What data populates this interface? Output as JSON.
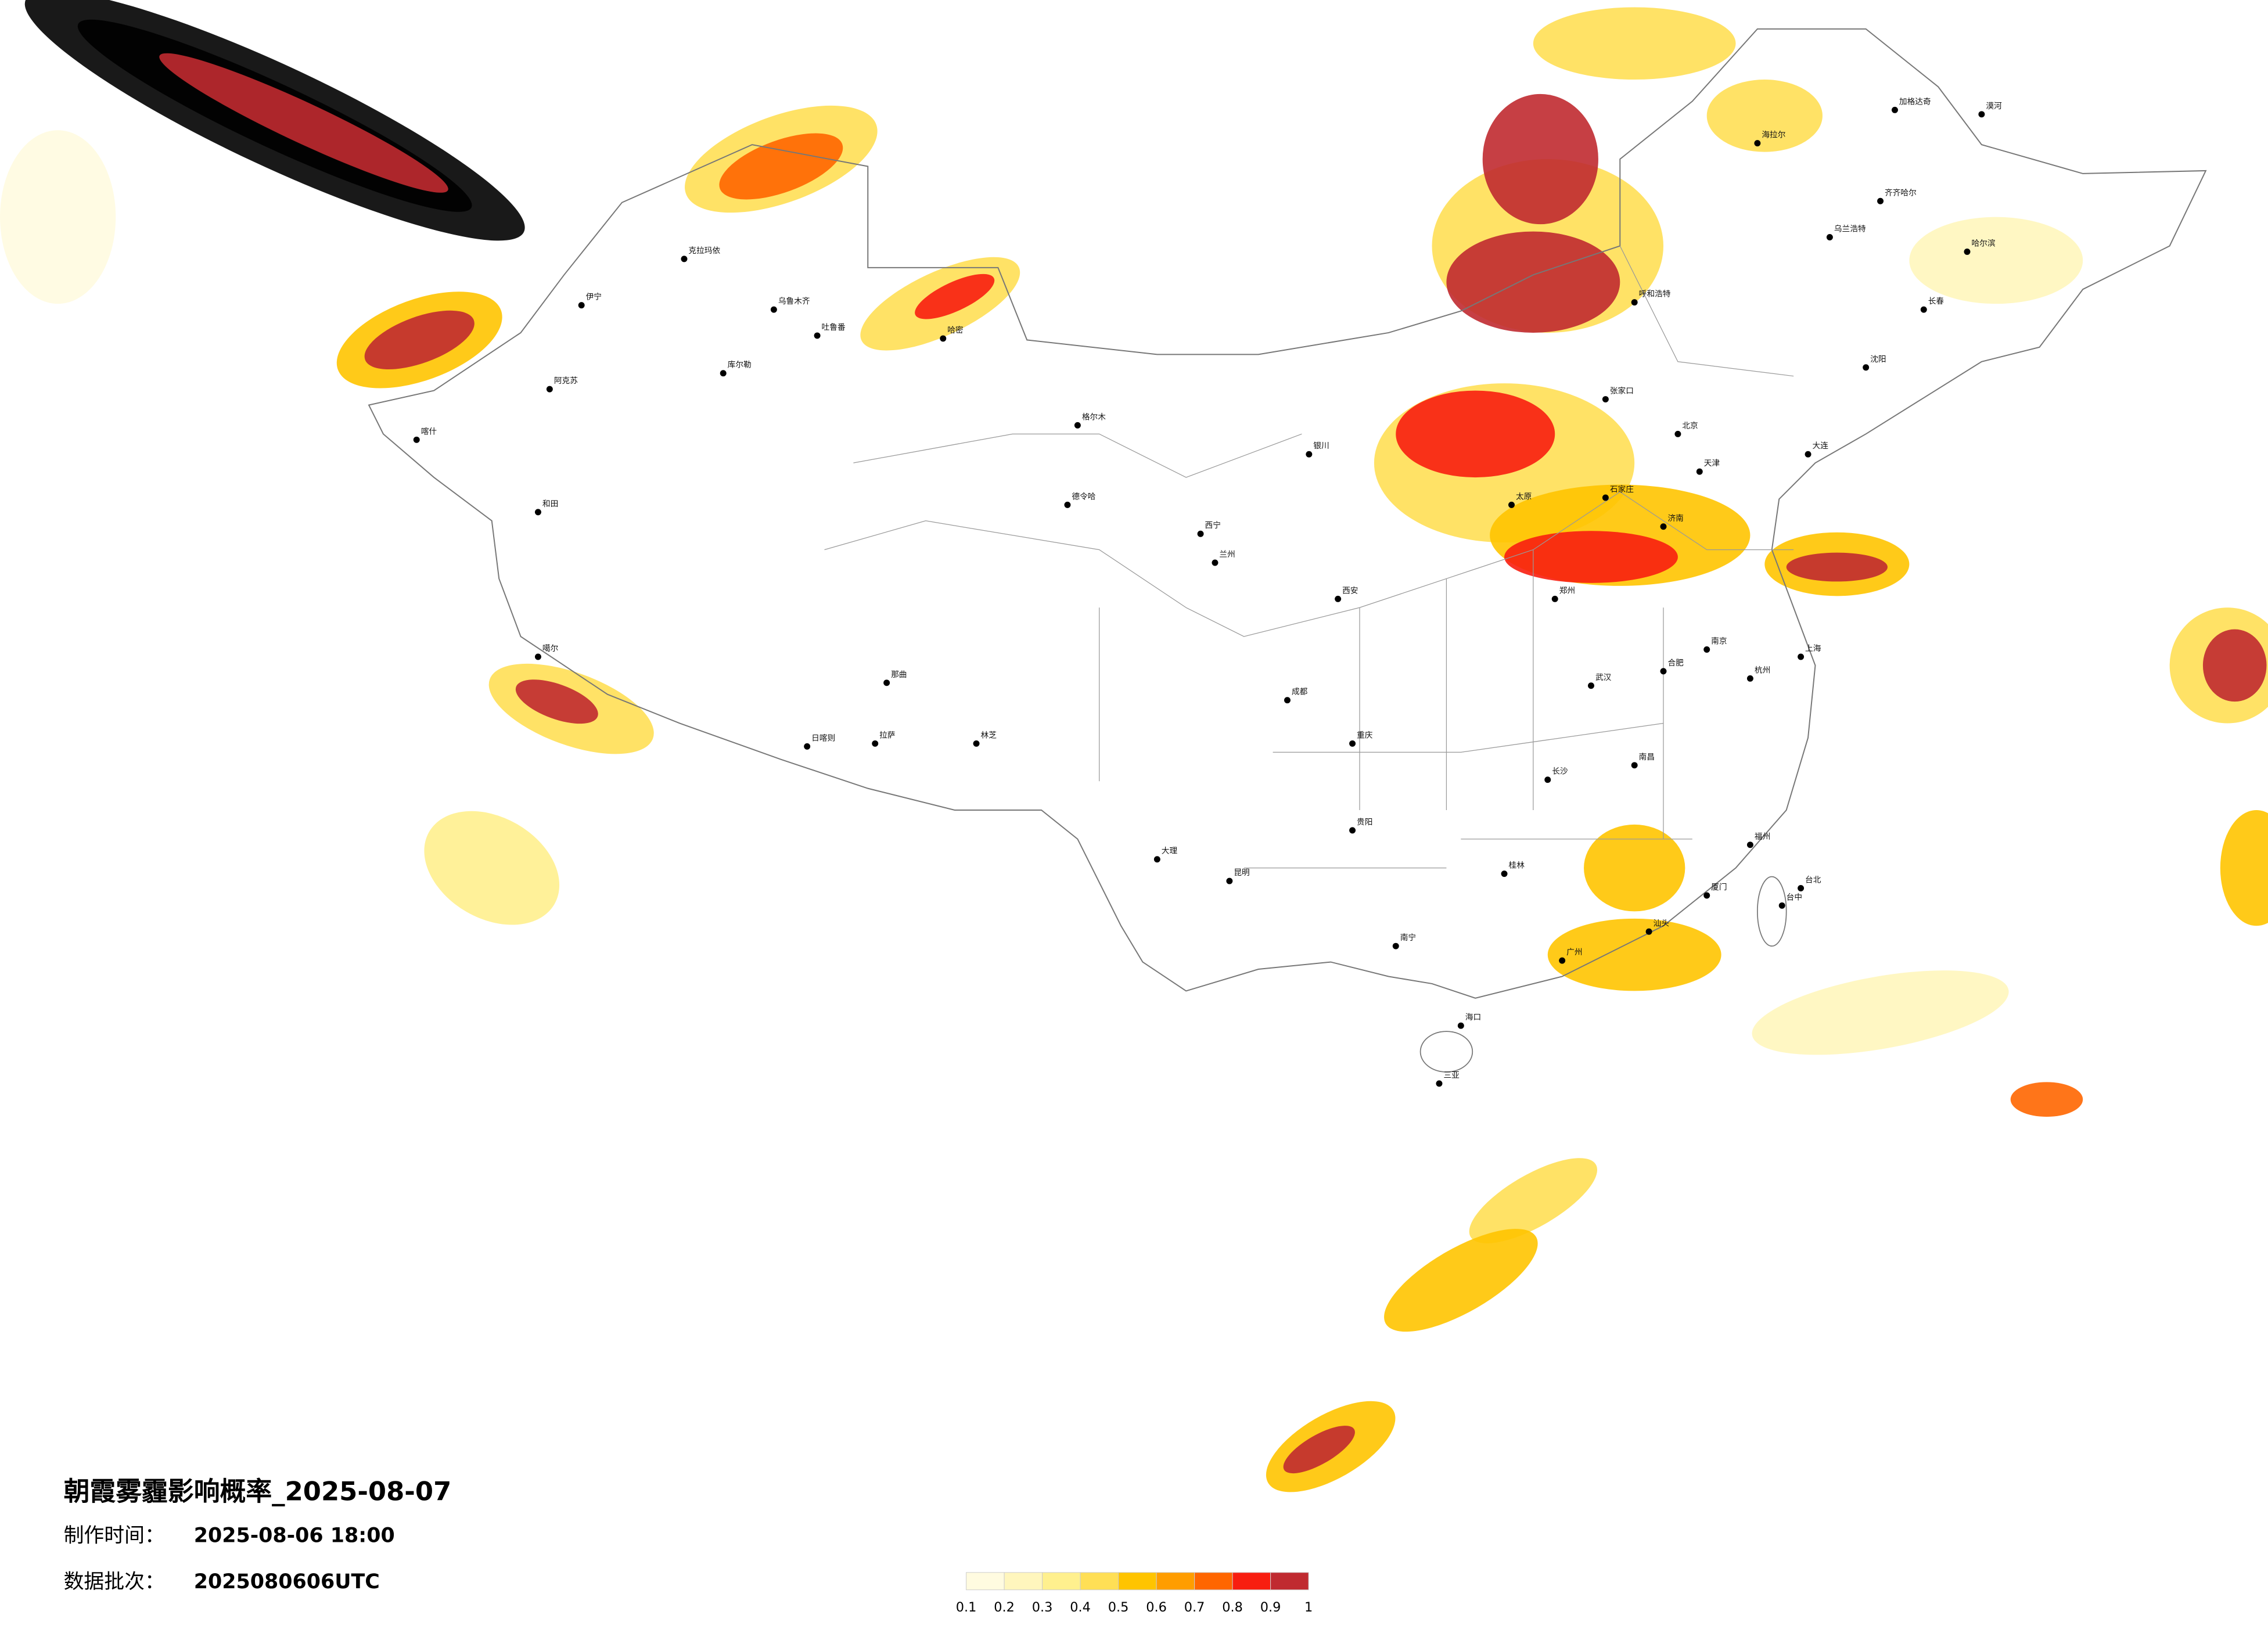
{
  "header": {
    "title": "朝霞雾霾影响概率_2025-08-07",
    "production_label": "制作时间：",
    "production_time": "2025-08-06 18:00",
    "batch_label": "数据批次：",
    "batch": "2025080606UTC"
  },
  "legend": {
    "ticks": [
      0.1,
      0.2,
      0.3,
      0.4,
      0.5,
      0.6,
      0.7,
      0.8,
      0.9,
      1
    ],
    "colors": [
      "#fffbe0",
      "#fff6bd",
      "#fff08e",
      "#ffdf55",
      "#ffc400",
      "#ff9d00",
      "#ff6600",
      "#f81e10",
      "#c02a30"
    ]
  },
  "cities": [
    "乌鲁木齐",
    "克拉玛依",
    "伊宁",
    "阿克苏",
    "和田",
    "喀什",
    "库尔勒",
    "哈密",
    "吐鲁番",
    "拉萨",
    "日喀则",
    "林芝",
    "那曲",
    "噶尔",
    "格尔木",
    "德令哈",
    "西宁",
    "兰州",
    "银川",
    "呼和浩特",
    "北京",
    "天津",
    "石家庄",
    "太原",
    "济南",
    "郑州",
    "西安",
    "成都",
    "重庆",
    "武汉",
    "长沙",
    "南昌",
    "杭州",
    "上海",
    "南京",
    "合肥",
    "福州",
    "广州",
    "南宁",
    "昆明",
    "贵阳",
    "海口",
    "哈尔滨",
    "长春",
    "沈阳",
    "大连",
    "台北",
    "齐齐哈尔",
    "漠河",
    "加格达奇",
    "海拉尔",
    "张家口",
    "桂林",
    "厦门",
    "汕头",
    "三亚",
    "台中",
    "大理",
    "乌兰浩特"
  ]
}
